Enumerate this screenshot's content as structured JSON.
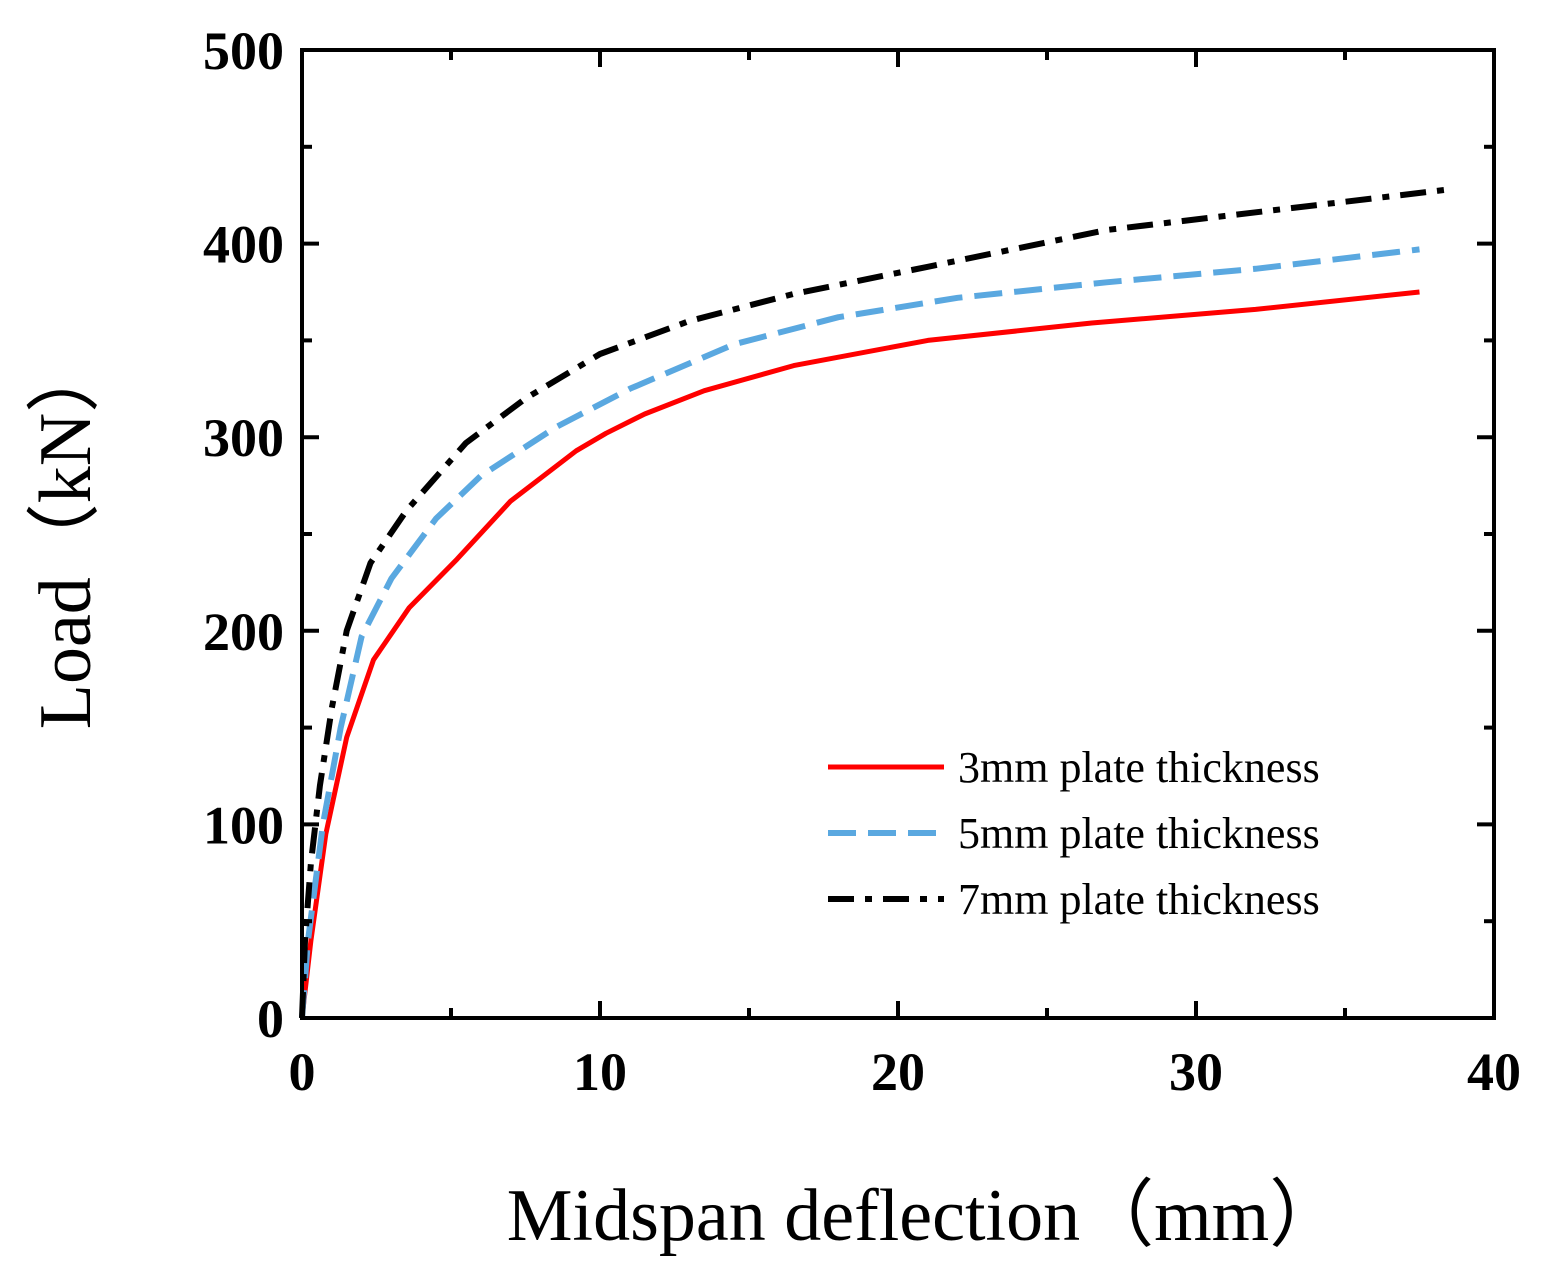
{
  "chart_data": {
    "type": "line",
    "title": "",
    "xlabel": "Midspan deflection（mm）",
    "ylabel": "Load（kN）",
    "xlim": [
      0,
      40
    ],
    "ylim": [
      0,
      500
    ],
    "x_ticks": [
      0,
      10,
      20,
      30,
      40
    ],
    "y_ticks": [
      0,
      100,
      200,
      300,
      400,
      500
    ],
    "x_tick_labels": [
      "0",
      "10",
      "20",
      "30",
      "40"
    ],
    "y_tick_labels": [
      "0",
      "100",
      "200",
      "300",
      "400",
      "500"
    ],
    "grid": false,
    "legend_position": "bottom-right",
    "series": [
      {
        "name": "3mm plate thickness",
        "color": "#ff0000",
        "style": "solid",
        "points": [
          [
            0,
            0
          ],
          [
            0.3,
            40
          ],
          [
            0.8,
            95
          ],
          [
            1.5,
            145
          ],
          [
            2.4,
            185
          ],
          [
            3.6,
            212
          ],
          [
            5.2,
            237
          ],
          [
            7.0,
            267
          ],
          [
            9.2,
            293
          ],
          [
            10.2,
            302
          ],
          [
            11.5,
            312
          ],
          [
            13.5,
            324
          ],
          [
            16.5,
            337
          ],
          [
            21.0,
            350
          ],
          [
            26.5,
            359
          ],
          [
            32.0,
            366
          ],
          [
            37.5,
            375
          ]
        ]
      },
      {
        "name": "5mm plate thickness",
        "color": "#5aa8e0",
        "style": "dashed",
        "points": [
          [
            0,
            0
          ],
          [
            0.2,
            40
          ],
          [
            0.7,
            100
          ],
          [
            1.3,
            150
          ],
          [
            2.0,
            197
          ],
          [
            3.0,
            227
          ],
          [
            4.5,
            258
          ],
          [
            6.0,
            280
          ],
          [
            8.5,
            305
          ],
          [
            11.0,
            325
          ],
          [
            14.5,
            348
          ],
          [
            18.0,
            362
          ],
          [
            22.0,
            372
          ],
          [
            27.0,
            380
          ],
          [
            32.0,
            387
          ],
          [
            37.5,
            397
          ]
        ]
      },
      {
        "name": "7mm plate thickness",
        "color": "#000000",
        "style": "dashdot",
        "points": [
          [
            0,
            0
          ],
          [
            0.1,
            40
          ],
          [
            0.3,
            80
          ],
          [
            0.6,
            120
          ],
          [
            1.0,
            160
          ],
          [
            1.5,
            200
          ],
          [
            2.3,
            235
          ],
          [
            3.5,
            262
          ],
          [
            5.5,
            297
          ],
          [
            7.5,
            320
          ],
          [
            10.0,
            343
          ],
          [
            13.0,
            360
          ],
          [
            16.5,
            374
          ],
          [
            21.0,
            388
          ],
          [
            27.0,
            407
          ],
          [
            33.0,
            418
          ],
          [
            38.5,
            428
          ]
        ]
      }
    ]
  }
}
